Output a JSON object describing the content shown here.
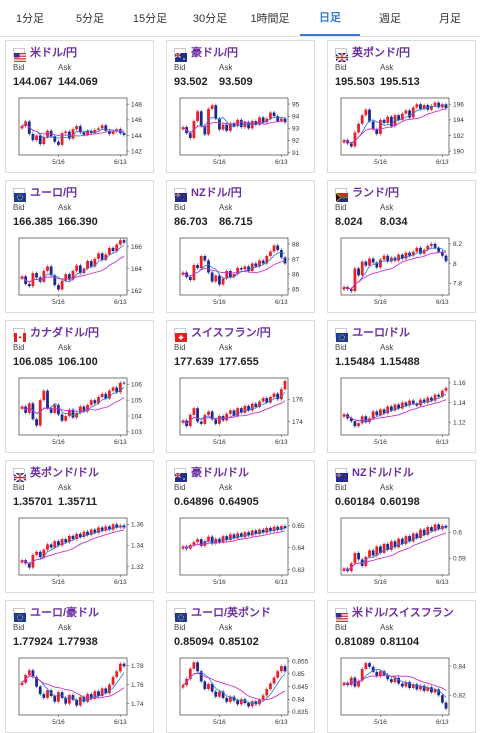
{
  "tabs": [
    {
      "label": "1分足",
      "active": false
    },
    {
      "label": "5分足",
      "active": false
    },
    {
      "label": "15分足",
      "active": false
    },
    {
      "label": "30分足",
      "active": false
    },
    {
      "label": "1時間足",
      "active": false
    },
    {
      "label": "日足",
      "active": true
    },
    {
      "label": "週足",
      "active": false
    },
    {
      "label": "月足",
      "active": false
    }
  ],
  "bid_label": "Bid",
  "ask_label": "Ask",
  "colors": {
    "up": "#e8202a",
    "down": "#1a2a8c",
    "ma_short": "#2277dd",
    "ma_long": "#cc33cc",
    "pair_text": "#6a2fa0",
    "active_tab": "#3a7bd5"
  },
  "cards": [
    {
      "pair": "米ドル/円",
      "flag": "us",
      "bid": "144.067",
      "ask": "144.069",
      "chart_data": {
        "type": "candlestick",
        "x_ticks": [
          "5/16",
          "6/13"
        ],
        "y_ticks": [
          "148",
          "146",
          "144",
          "142"
        ],
        "ylim": [
          141.5,
          148.8
        ],
        "close": [
          145.2,
          145.8,
          144.2,
          143.4,
          144.0,
          142.9,
          143.8,
          144.6,
          143.9,
          143.2,
          142.8,
          144.3,
          144.5,
          143.6,
          144.8,
          145.2,
          144.4,
          144.1,
          144.6,
          144.3,
          144.7,
          144.9,
          145.3,
          144.6,
          144.2,
          144.5,
          144.8,
          144.3,
          144.067
        ]
      }
    },
    {
      "pair": "豪ドル/円",
      "flag": "au",
      "bid": "93.502",
      "ask": "93.509",
      "chart_data": {
        "type": "candlestick",
        "x_ticks": [
          "5/16",
          "6/13"
        ],
        "y_ticks": [
          "95",
          "94",
          "93",
          "92",
          "91"
        ],
        "ylim": [
          90.8,
          95.5
        ],
        "close": [
          93.1,
          92.6,
          92.2,
          93.6,
          94.4,
          93.2,
          92.5,
          94.6,
          94.9,
          93.8,
          92.9,
          93.3,
          92.8,
          93.4,
          93.2,
          93.7,
          93.1,
          93.5,
          93.0,
          93.6,
          93.3,
          93.9,
          93.5,
          93.8,
          94.3,
          94.0,
          93.6,
          93.8,
          93.502
        ]
      }
    },
    {
      "pair": "英ポンド/円",
      "flag": "gb",
      "bid": "195.503",
      "ask": "195.513",
      "chart_data": {
        "type": "candlestick",
        "x_ticks": [
          "5/16",
          "6/13"
        ],
        "y_ticks": [
          "196",
          "194",
          "192",
          "190"
        ],
        "ylim": [
          189.5,
          196.8
        ],
        "close": [
          191.4,
          191.0,
          190.6,
          192.4,
          193.5,
          194.6,
          195.3,
          193.8,
          192.8,
          192.2,
          194.0,
          193.6,
          194.4,
          193.2,
          194.6,
          194.0,
          194.8,
          195.2,
          194.3,
          195.6,
          196.0,
          195.4,
          195.9,
          195.3,
          195.8,
          196.2,
          195.6,
          196.0,
          195.503
        ]
      }
    },
    {
      "pair": "ユーロ/円",
      "flag": "eu",
      "bid": "166.385",
      "ask": "166.390",
      "chart_data": {
        "type": "candlestick",
        "x_ticks": [
          "5/16",
          "6/13"
        ],
        "y_ticks": [
          "166",
          "164",
          "162"
        ],
        "ylim": [
          161.6,
          166.8
        ],
        "close": [
          163.3,
          162.6,
          162.4,
          163.6,
          163.2,
          162.8,
          163.8,
          164.2,
          163.4,
          162.5,
          162.1,
          162.9,
          163.5,
          163.0,
          163.8,
          164.3,
          163.6,
          164.0,
          164.7,
          164.2,
          164.9,
          165.4,
          164.8,
          165.3,
          165.9,
          165.6,
          166.2,
          166.6,
          166.385
        ]
      }
    },
    {
      "pair": "NZドル/円",
      "flag": "nz",
      "bid": "86.703",
      "ask": "86.715",
      "chart_data": {
        "type": "candlestick",
        "x_ticks": [
          "5/16",
          "6/13"
        ],
        "y_ticks": [
          "88",
          "87",
          "86",
          "85"
        ],
        "ylim": [
          84.6,
          88.4
        ],
        "close": [
          86.1,
          85.8,
          85.6,
          86.6,
          86.4,
          87.2,
          86.9,
          86.1,
          85.5,
          85.9,
          85.3,
          85.7,
          86.2,
          85.8,
          86.0,
          86.4,
          86.3,
          86.5,
          86.2,
          86.7,
          86.5,
          86.9,
          86.7,
          87.2,
          87.5,
          87.9,
          87.6,
          87.1,
          86.703
        ]
      }
    },
    {
      "pair": "ランド/円",
      "flag": "za",
      "bid": "8.024",
      "ask": "8.034",
      "chart_data": {
        "type": "candlestick",
        "x_ticks": [
          "5/16",
          "6/13"
        ],
        "y_ticks": [
          "8.2",
          "8",
          "7.8"
        ],
        "ylim": [
          7.68,
          8.26
        ],
        "close": [
          7.76,
          7.74,
          7.72,
          7.95,
          7.88,
          8.02,
          7.98,
          8.05,
          8.01,
          7.96,
          8.04,
          8.08,
          8.02,
          8.06,
          8.03,
          8.09,
          8.05,
          8.11,
          8.08,
          8.12,
          8.16,
          8.1,
          8.14,
          8.18,
          8.2,
          8.16,
          8.12,
          8.08,
          8.024
        ]
      }
    },
    {
      "pair": "カナダドル/円",
      "flag": "ca",
      "bid": "106.085",
      "ask": "106.100",
      "chart_data": {
        "type": "candlestick",
        "x_ticks": [
          "5/16",
          "6/13"
        ],
        "y_ticks": [
          "106",
          "105",
          "104",
          "103"
        ],
        "ylim": [
          102.8,
          106.4
        ],
        "close": [
          104.6,
          104.2,
          104.8,
          103.8,
          103.4,
          105.0,
          105.6,
          104.5,
          104.2,
          104.7,
          104.1,
          103.7,
          104.0,
          104.4,
          103.9,
          104.2,
          104.6,
          104.3,
          104.7,
          105.0,
          104.8,
          105.2,
          105.4,
          105.1,
          105.6,
          105.8,
          105.5,
          106.1,
          106.085
        ]
      }
    },
    {
      "pair": "スイスフラン/円",
      "flag": "ch",
      "bid": "177.639",
      "ask": "177.655",
      "chart_data": {
        "type": "candlestick",
        "x_ticks": [
          "5/16",
          "6/13"
        ],
        "y_ticks": [
          "176",
          "174"
        ],
        "ylim": [
          172.8,
          177.9
        ],
        "close": [
          174.1,
          173.6,
          174.6,
          175.2,
          174.0,
          173.8,
          174.6,
          174.9,
          174.2,
          173.8,
          174.5,
          174.1,
          174.7,
          175.0,
          174.5,
          175.2,
          174.8,
          175.4,
          175.0,
          175.6,
          175.3,
          175.8,
          176.1,
          175.7,
          176.2,
          176.5,
          176.0,
          176.9,
          177.639
        ]
      }
    },
    {
      "pair": "ユーロ/ドル",
      "flag": "eu",
      "bid": "1.15484",
      "ask": "1.15488",
      "chart_data": {
        "type": "candlestick",
        "x_ticks": [
          "5/16",
          "6/13"
        ],
        "y_ticks": [
          "1.16",
          "1.14",
          "1.12"
        ],
        "ylim": [
          1.107,
          1.165
        ],
        "close": [
          1.128,
          1.124,
          1.121,
          1.116,
          1.119,
          1.126,
          1.12,
          1.124,
          1.131,
          1.127,
          1.133,
          1.129,
          1.136,
          1.132,
          1.138,
          1.134,
          1.14,
          1.137,
          1.142,
          1.139,
          1.137,
          1.143,
          1.14,
          1.145,
          1.142,
          1.148,
          1.146,
          1.152,
          1.15484
        ]
      }
    },
    {
      "pair": "英ポンド/ドル",
      "flag": "gb",
      "bid": "1.35701",
      "ask": "1.35711",
      "chart_data": {
        "type": "candlestick",
        "x_ticks": [
          "5/16",
          "6/13"
        ],
        "y_ticks": [
          "1.36",
          "1.34",
          "1.32"
        ],
        "ylim": [
          1.312,
          1.366
        ],
        "close": [
          1.326,
          1.323,
          1.319,
          1.331,
          1.334,
          1.329,
          1.336,
          1.341,
          1.338,
          1.344,
          1.34,
          1.346,
          1.343,
          1.349,
          1.346,
          1.351,
          1.348,
          1.353,
          1.35,
          1.355,
          1.352,
          1.357,
          1.354,
          1.358,
          1.355,
          1.36,
          1.357,
          1.359,
          1.35701
        ]
      }
    },
    {
      "pair": "豪ドル/ドル",
      "flag": "au",
      "bid": "0.64896",
      "ask": "0.64905",
      "chart_data": {
        "type": "candlestick",
        "x_ticks": [
          "5/16",
          "6/13"
        ],
        "y_ticks": [
          "0.65",
          "0.64",
          "0.63"
        ],
        "ylim": [
          0.6275,
          0.6535
        ],
        "close": [
          0.6405,
          0.6395,
          0.6412,
          0.6425,
          0.6438,
          0.6408,
          0.643,
          0.645,
          0.6418,
          0.644,
          0.6425,
          0.6452,
          0.6435,
          0.646,
          0.6442,
          0.6465,
          0.6448,
          0.647,
          0.6455,
          0.6478,
          0.6462,
          0.6482,
          0.6468,
          0.649,
          0.6475,
          0.6495,
          0.648,
          0.6498,
          0.64896
        ]
      }
    },
    {
      "pair": "NZドル/ドル",
      "flag": "nz",
      "bid": "0.60184",
      "ask": "0.60198",
      "chart_data": {
        "type": "candlestick",
        "x_ticks": [
          "5/16",
          "6/13"
        ],
        "y_ticks": [
          "0.6",
          "0.59"
        ],
        "ylim": [
          0.5835,
          0.6055
        ],
        "close": [
          0.586,
          0.585,
          0.588,
          0.592,
          0.5895,
          0.587,
          0.5905,
          0.593,
          0.591,
          0.5945,
          0.592,
          0.5955,
          0.5932,
          0.5965,
          0.5942,
          0.5975,
          0.5955,
          0.5985,
          0.5965,
          0.5995,
          0.5978,
          0.601,
          0.599,
          0.602,
          0.6005,
          0.603,
          0.6012,
          0.6025,
          0.60184
        ]
      }
    },
    {
      "pair": "ユーロ/豪ドル",
      "flag": "eu",
      "bid": "1.77924",
      "ask": "1.77938",
      "chart_data": {
        "type": "candlestick",
        "x_ticks": [
          "5/16",
          "6/13"
        ],
        "y_ticks": [
          "1.78",
          "1.76",
          "1.74"
        ],
        "ylim": [
          1.728,
          1.788
        ],
        "close": [
          1.762,
          1.77,
          1.775,
          1.768,
          1.758,
          1.75,
          1.746,
          1.754,
          1.748,
          1.742,
          1.752,
          1.746,
          1.74,
          1.749,
          1.744,
          1.738,
          1.747,
          1.742,
          1.75,
          1.745,
          1.753,
          1.748,
          1.756,
          1.751,
          1.76,
          1.768,
          1.774,
          1.782,
          1.77924
        ]
      }
    },
    {
      "pair": "ユーロ/英ポンド",
      "flag": "eu",
      "bid": "0.85094",
      "ask": "0.85102",
      "chart_data": {
        "type": "candlestick",
        "x_ticks": [
          "5/16",
          "6/13"
        ],
        "y_ticks": [
          "0.855",
          "0.85",
          "0.845",
          "0.84",
          "0.835"
        ],
        "ylim": [
          0.8338,
          0.8562
        ],
        "close": [
          0.8455,
          0.848,
          0.852,
          0.8545,
          0.851,
          0.847,
          0.844,
          0.846,
          0.843,
          0.841,
          0.843,
          0.8405,
          0.839,
          0.841,
          0.8395,
          0.838,
          0.84,
          0.8385,
          0.8372,
          0.8392,
          0.838,
          0.8398,
          0.8415,
          0.844,
          0.8462,
          0.8485,
          0.851,
          0.853,
          0.85094
        ]
      }
    },
    {
      "pair": "米ドル/スイスフラン",
      "flag": "us",
      "bid": "0.81089",
      "ask": "0.81104",
      "chart_data": {
        "type": "candlestick",
        "x_ticks": [
          "5/16",
          "6/13"
        ],
        "y_ticks": [
          "0.84",
          "0.82"
        ],
        "ylim": [
          0.8065,
          0.8455
        ],
        "close": [
          0.8285,
          0.827,
          0.832,
          0.826,
          0.83,
          0.838,
          0.842,
          0.8395,
          0.836,
          0.833,
          0.8365,
          0.834,
          0.831,
          0.829,
          0.832,
          0.828,
          0.826,
          0.829,
          0.825,
          0.8275,
          0.824,
          0.8265,
          0.823,
          0.8255,
          0.822,
          0.824,
          0.82,
          0.815,
          0.81089
        ]
      }
    }
  ]
}
